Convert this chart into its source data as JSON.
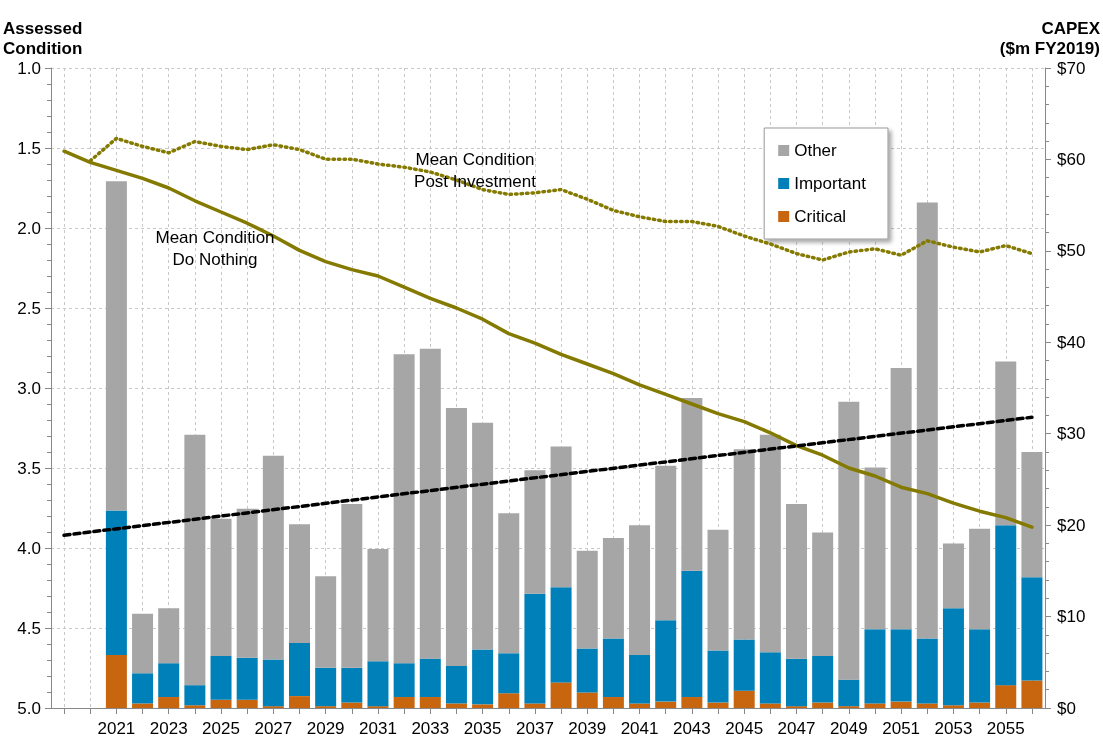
{
  "chart_data": {
    "type": "bar",
    "stacked": true,
    "grid": true,
    "legend": "top right",
    "marker": "none",
    "ylabel": "Assessed Condition",
    "y2label": "CAPEX ($m FY2019)",
    "xlim": [
      2018.5,
      2056.5
    ],
    "xticks": [
      {
        "value": 2019,
        "label": null
      },
      {
        "value": 2020,
        "label": null
      },
      2021,
      {
        "value": 2022,
        "label": null
      },
      2023,
      {
        "value": 2024,
        "label": null
      },
      2025,
      {
        "value": 2026,
        "label": null
      },
      2027,
      {
        "value": 2028,
        "label": null
      },
      2029,
      {
        "value": 2030,
        "label": null
      },
      2031,
      {
        "value": 2032,
        "label": null
      },
      2033,
      {
        "value": 2034,
        "label": null
      },
      2035,
      {
        "value": 2036,
        "label": null
      },
      2037,
      {
        "value": 2038,
        "label": null
      },
      2039,
      {
        "value": 2040,
        "label": null
      },
      2041,
      {
        "value": 2042,
        "label": null
      },
      2043,
      {
        "value": 2044,
        "label": null
      },
      2045,
      {
        "value": 2046,
        "label": null
      },
      2047,
      {
        "value": 2048,
        "label": null
      },
      2049,
      {
        "value": 2050,
        "label": null
      },
      2051,
      {
        "value": 2052,
        "label": null
      },
      2053,
      {
        "value": 2054,
        "label": null
      },
      2055,
      {
        "value": 2056,
        "label": null
      }
    ],
    "ylim": [
      5,
      1
    ],
    "yticks": [
      {
        "value": 1,
        "label": "1.0"
      },
      {
        "value": 1.5,
        "label": "1.5"
      },
      {
        "value": 2,
        "label": "2.0"
      },
      {
        "value": 2.5,
        "label": "2.5"
      },
      {
        "value": 3,
        "label": "3.0"
      },
      {
        "value": 3.5,
        "label": "3.5"
      },
      {
        "value": 4,
        "label": "4.0"
      },
      {
        "value": 4.5,
        "label": "4.5"
      },
      {
        "value": 5,
        "label": "5.0"
      }
    ],
    "y2lim": [
      0,
      70
    ],
    "y2ticks": [
      {
        "value": 0,
        "label": "$0"
      },
      {
        "value": 10,
        "label": "$10"
      },
      {
        "value": 20,
        "label": "$20"
      },
      {
        "value": 30,
        "label": "$30"
      },
      {
        "value": 40,
        "label": "$40"
      },
      {
        "value": 50,
        "label": "$50"
      },
      {
        "value": 60,
        "label": "$60"
      },
      {
        "value": 70,
        "label": "$70"
      }
    ],
    "x": [
      2021,
      2022,
      2023,
      2024,
      2025,
      2026,
      2027,
      2028,
      2029,
      2030,
      2031,
      2032,
      2033,
      2034,
      2035,
      2036,
      2037,
      2038,
      2039,
      2040,
      2041,
      2042,
      2043,
      2044,
      2045,
      2046,
      2047,
      2048,
      2049,
      2050,
      2051,
      2052,
      2053,
      2054,
      2055,
      2056
    ],
    "series": [
      {
        "name": "Critical",
        "color": "#c8650f",
        "axis": "y2",
        "values": [
          5.8,
          0.5,
          1.2,
          0.3,
          0.9,
          0.9,
          0.2,
          1.3,
          0.2,
          0.6,
          0.2,
          1.2,
          1.2,
          0.5,
          0.4,
          1.6,
          0.5,
          2.8,
          1.7,
          1.2,
          0.5,
          0.7,
          1.2,
          0.6,
          1.9,
          0.5,
          0.2,
          0.6,
          0.2,
          0.5,
          0.7,
          0.5,
          0.3,
          0.6,
          2.5,
          3.0
        ]
      },
      {
        "name": "Important",
        "color": "#0080b8",
        "axis": "y2",
        "values": [
          15.8,
          3.3,
          3.7,
          2.2,
          4.8,
          4.6,
          5.1,
          5.8,
          4.2,
          3.8,
          4.9,
          3.7,
          4.2,
          4.1,
          6.0,
          4.4,
          12.0,
          10.4,
          4.8,
          6.4,
          5.3,
          8.9,
          13.8,
          5.7,
          5.6,
          5.6,
          5.2,
          5.1,
          2.9,
          8.1,
          7.9,
          7.1,
          10.6,
          8.0,
          17.5,
          11.3
        ]
      },
      {
        "name": "Other",
        "color": "#a6a6a6",
        "axis": "y2",
        "values": [
          36.0,
          6.5,
          6.0,
          27.4,
          15.0,
          16.3,
          22.3,
          13.0,
          10.0,
          17.9,
          12.3,
          33.8,
          33.9,
          28.2,
          24.8,
          15.3,
          13.5,
          15.4,
          10.7,
          11.0,
          14.2,
          16.9,
          18.9,
          13.2,
          20.8,
          23.8,
          16.9,
          13.5,
          30.4,
          17.7,
          28.6,
          47.7,
          7.1,
          11.0,
          17.9,
          13.7
        ]
      },
      {
        "type": "line",
        "color": "#857a00",
        "line_style": "solid",
        "x": [
          2019,
          2020,
          2021,
          2022,
          2023,
          2024,
          2025,
          2026,
          2027,
          2028,
          2029,
          2030,
          2031,
          2032,
          2033,
          2034,
          2035,
          2036,
          2037,
          2038,
          2039,
          2040,
          2041,
          2042,
          2043,
          2044,
          2045,
          2046,
          2047,
          2048,
          2049,
          2050,
          2051,
          2052,
          2053,
          2054,
          2055,
          2056
        ],
        "values": [
          1.52,
          1.59,
          1.64,
          1.69,
          1.75,
          1.83,
          1.9,
          1.97,
          2.05,
          2.14,
          2.21,
          2.26,
          2.3,
          2.37,
          2.44,
          2.5,
          2.57,
          2.66,
          2.72,
          2.79,
          2.85,
          2.91,
          2.98,
          3.04,
          3.1,
          3.16,
          3.21,
          3.28,
          3.36,
          3.42,
          3.5,
          3.55,
          3.62,
          3.66,
          3.72,
          3.77,
          3.81,
          3.87
        ]
      },
      {
        "type": "line",
        "color": "#857a00",
        "line_style": "dotted",
        "x": [
          2020,
          2021,
          2022,
          2023,
          2024,
          2025,
          2026,
          2027,
          2028,
          2029,
          2030,
          2031,
          2032,
          2033,
          2034,
          2035,
          2036,
          2037,
          2038,
          2039,
          2040,
          2041,
          2042,
          2043,
          2044,
          2045,
          2046,
          2047,
          2048,
          2049,
          2050,
          2051,
          2052,
          2053,
          2054,
          2055,
          2056
        ],
        "values": [
          1.58,
          1.44,
          1.49,
          1.53,
          1.46,
          1.49,
          1.51,
          1.48,
          1.51,
          1.57,
          1.57,
          1.6,
          1.62,
          1.65,
          1.7,
          1.76,
          1.79,
          1.78,
          1.76,
          1.82,
          1.89,
          1.93,
          1.96,
          1.96,
          1.99,
          2.05,
          2.1,
          2.16,
          2.2,
          2.15,
          2.13,
          2.17,
          2.08,
          2.12,
          2.15,
          2.11,
          2.16
        ]
      },
      {
        "type": "line",
        "color": "#000000",
        "line_style": "dashed",
        "axis": "y2",
        "x": [
          2019,
          2056
        ],
        "values": [
          18.9,
          31.8
        ]
      }
    ],
    "annotations": [
      "Mean Condition\nDo Nothing",
      "Mean Condition\nPost Investment"
    ]
  }
}
